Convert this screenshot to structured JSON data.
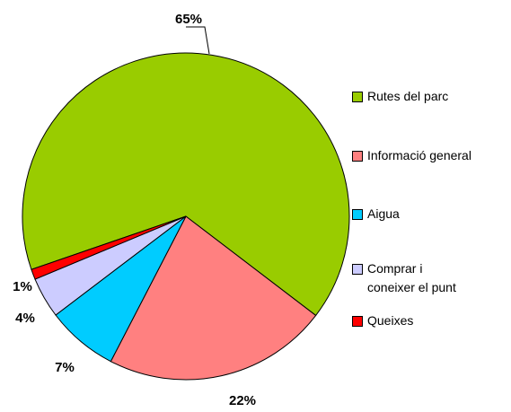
{
  "chart_data": {
    "type": "pie",
    "categories": [
      "Rutes del parc",
      "Informació general",
      "Aigua",
      "Comprar i coneixer el punt",
      "Queixes"
    ],
    "values": [
      65,
      22,
      7,
      4,
      1
    ],
    "colors": [
      "#99cc00",
      "#ff8080",
      "#00ccff",
      "#ccccff",
      "#ff0000"
    ],
    "legend": "right"
  }
}
